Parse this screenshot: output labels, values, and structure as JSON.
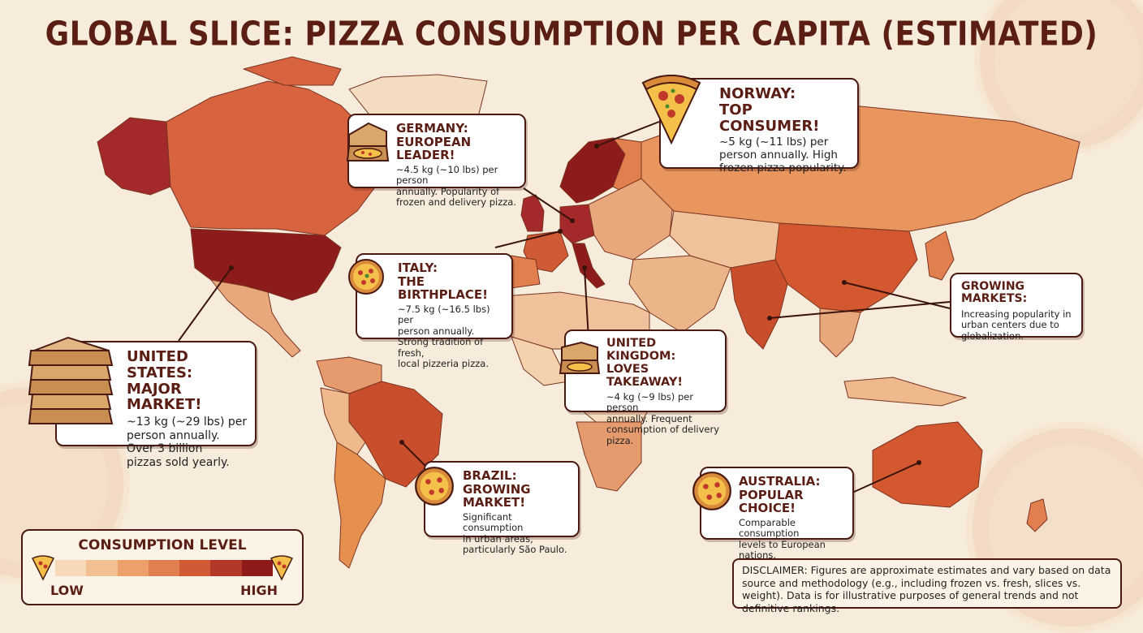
{
  "title": "GLOBAL SLICE: PIZZA CONSUMPTION PER CAPITA (ESTIMATED)",
  "colors": {
    "background": "#f7ecdc",
    "low": "#f6d9b8",
    "high": "#8e1b1b",
    "outline": "#4a1a12"
  },
  "legend": {
    "title": "CONSUMPTION LEVEL",
    "low_label": "LOW",
    "high_label": "HIGH",
    "scale_colors": [
      "#f6d9b8",
      "#f2c093",
      "#eda06a",
      "#e27f4e",
      "#cf5a34",
      "#b2382a",
      "#8e1b1b"
    ]
  },
  "callouts": {
    "norway": {
      "heading": [
        "NORWAY:",
        "TOP CONSUMER!"
      ],
      "body": [
        "~5 kg (~11 lbs) per",
        "person annually. High",
        "frozen pizza popularity."
      ],
      "icon": "pizza-slice-icon"
    },
    "germany": {
      "heading": [
        "GERMANY:",
        "EUROPEAN LEADER!"
      ],
      "body": [
        "~4.5 kg (~10 lbs) per person",
        "annually. Popularity of",
        "frozen and delivery pizza."
      ],
      "icon": "pizza-box-icon"
    },
    "italy": {
      "heading": [
        "ITALY:",
        "THE BIRTHPLACE!"
      ],
      "body": [
        "~7.5 kg (~16.5 lbs) per",
        "person annually.",
        "Strong tradition of fresh,",
        "local pizzeria pizza."
      ],
      "icon": "whole-pizza-icon"
    },
    "uk": {
      "heading": [
        "UNITED KINGDOM:",
        "LOVES TAKEAWAY!"
      ],
      "body": [
        "~4 kg (~9 lbs) per person",
        "annually. Frequent",
        "consumption of delivery",
        "pizza."
      ],
      "icon": "pizza-box-icon"
    },
    "us": {
      "heading": [
        "UNITED STATES:",
        "MAJOR MARKET!"
      ],
      "body": [
        "~13 kg (~29 lbs) per",
        "person annually.",
        "Over 3 billion",
        "pizzas sold yearly."
      ],
      "icon": "stacked-pizza-boxes-icon"
    },
    "brazil": {
      "heading": [
        "BRAZIL:",
        "GROWING MARKET!"
      ],
      "body": [
        "Significant consumption",
        "in urban areas,",
        "particularly São Paulo."
      ],
      "icon": "whole-pizza-icon"
    },
    "growing": {
      "heading": [
        "GROWING MARKETS:"
      ],
      "body": [
        "Increasing popularity in",
        "urban centers due to",
        "globalization."
      ]
    },
    "australia": {
      "heading": [
        "AUSTRALIA:",
        "POPULAR CHOICE!"
      ],
      "body": [
        "Comparable consumption",
        "levels to European",
        "nations."
      ],
      "icon": "whole-pizza-icon"
    }
  },
  "disclaimer": "DISCLAIMER: Figures are approximate estimates and vary based on data source and methodology (e.g., including frozen vs. fresh, slices vs. weight). Data is for illustrative purposes of general trends and not definitive rankings."
}
